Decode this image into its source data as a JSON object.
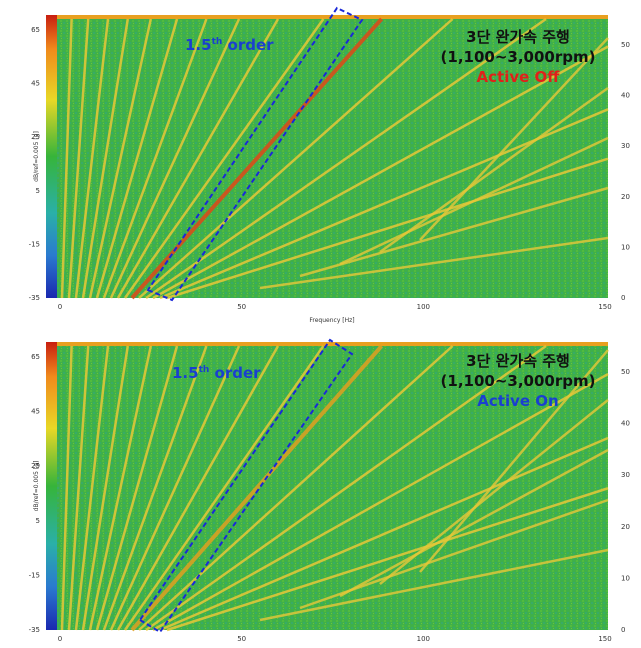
{
  "panels": [
    {
      "y_axis_label": "dB/ref=0.005 [g]",
      "left_ticks": [
        "65",
        "45",
        "25",
        "5",
        "-15",
        "-35"
      ],
      "right_ticks": [
        "50",
        "40",
        "30",
        "20",
        "10",
        "0"
      ],
      "x_ticks": [
        "0",
        "50",
        "100",
        "150"
      ],
      "x_axis_label": "Frequency [Hz]",
      "order_label": {
        "base": "1.5",
        "sup": "th",
        "rest": " order"
      },
      "title_lines": [
        "3단 완가속 주행",
        "(1,100~3,000rpm)"
      ],
      "state": "Active Off"
    },
    {
      "y_axis_label": "dB/ref=0.005 [g]",
      "left_ticks": [
        "65",
        "45",
        "25",
        "5",
        "-15",
        "-35"
      ],
      "right_ticks": [
        "50",
        "40",
        "30",
        "20",
        "10",
        "0"
      ],
      "x_ticks": [
        "0",
        "50",
        "100",
        "150"
      ],
      "order_label": {
        "base": "1.5",
        "sup": "th",
        "rest": " order"
      },
      "title_lines": [
        "3단 완가속 주행",
        "(1,100~3,000rpm)"
      ],
      "state": "Active On"
    }
  ]
}
